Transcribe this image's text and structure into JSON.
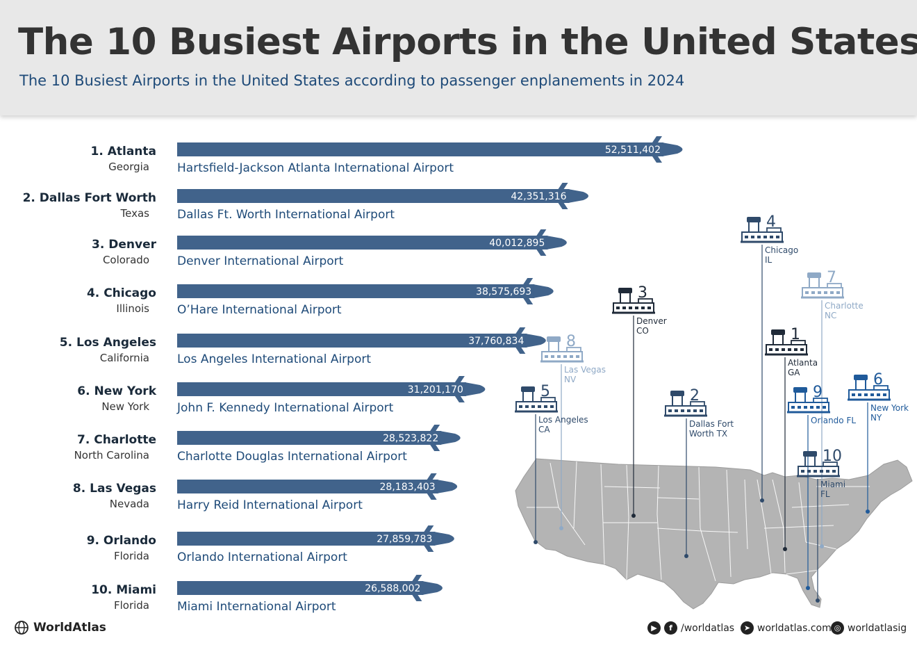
{
  "header": {
    "title": "The 10 Busiest Airports in the United States",
    "subtitle": "The 10 Busiest Airports in the United States according to passenger enplanements in 2024"
  },
  "chart_data": {
    "type": "bar",
    "orientation": "horizontal",
    "title": "The 10 Busiest Airports in the United States",
    "subtitle": "The 10 Busiest Airports in the United States according to passenger enplanements in 2024",
    "xlabel": "",
    "ylabel": "",
    "bar_color": "#41638b",
    "categories": [
      "Atlanta",
      "Dallas Fort Worth",
      "Denver",
      "Chicago",
      "Los Angeles",
      "New York",
      "Charlotte",
      "Las Vegas",
      "Orlando",
      "Miami"
    ],
    "items": [
      {
        "rank": "1.",
        "city": "Atlanta",
        "state": "Georgia",
        "airport": "Hartsfield-Jackson Atlanta International Airport",
        "value": 52511402,
        "label": "52,511,402"
      },
      {
        "rank": "2.",
        "city": "Dallas Fort Worth",
        "state": "Texas",
        "airport": "Dallas Ft. Worth International Airport",
        "value": 42351316,
        "label": "42,351,316"
      },
      {
        "rank": "3.",
        "city": "Denver",
        "state": "Colorado",
        "airport": "Denver International Airport",
        "value": 40012895,
        "label": "40,012,895"
      },
      {
        "rank": "4.",
        "city": "Chicago",
        "state": "Illinois",
        "airport": "O’Hare International Airport",
        "value": 38575693,
        "label": "38,575,693"
      },
      {
        "rank": "5.",
        "city": "Los Angeles",
        "state": "California",
        "airport": "Los Angeles International Airport",
        "value": 37760834,
        "label": "37,760,834"
      },
      {
        "rank": "6.",
        "city": "New York",
        "state": "New York",
        "airport": "John F. Kennedy International Airport",
        "value": 31201170,
        "label": "31,201,170"
      },
      {
        "rank": "7.",
        "city": "Charlotte",
        "state": "North Carolina",
        "airport": "Charlotte Douglas International Airport",
        "value": 28523822,
        "label": "28,523,822"
      },
      {
        "rank": "8.",
        "city": "Las Vegas",
        "state": "Nevada",
        "airport": "Harry Reid International Airport",
        "value": 28183403,
        "label": "28,183,403"
      },
      {
        "rank": "9.",
        "city": "Orlando",
        "state": "Florida",
        "airport": "Orlando International Airport",
        "value": 27859783,
        "label": "27,859,783"
      },
      {
        "rank": "10.",
        "city": "Miami",
        "state": "Florida",
        "airport": "Miami International Airport",
        "value": 26588002,
        "label": "26,588,002"
      }
    ]
  },
  "map": {
    "colors": {
      "land": "#b4b4b4",
      "border": "#ffffff",
      "marker": "#41638b",
      "marker_light": "#8fa9c6",
      "marker_dark": "#1f2a38"
    },
    "markers": [
      {
        "rank": "1",
        "line1": "Atlanta",
        "line2": "GA",
        "tone": "dark"
      },
      {
        "rank": "2",
        "line1": "Dallas Fort",
        "line2": "Worth TX",
        "tone": "mid"
      },
      {
        "rank": "3",
        "line1": "Denver",
        "line2": "CO",
        "tone": "dark"
      },
      {
        "rank": "4",
        "line1": "Chicago",
        "line2": "IL",
        "tone": "mid"
      },
      {
        "rank": "5",
        "line1": "Los Angeles",
        "line2": "CA",
        "tone": "mid"
      },
      {
        "rank": "6",
        "line1": "New York",
        "line2": "NY",
        "tone": "blue"
      },
      {
        "rank": "7",
        "line1": "Charlotte",
        "line2": "NC",
        "tone": "light"
      },
      {
        "rank": "8",
        "line1": "Las Vegas",
        "line2": "NV",
        "tone": "light"
      },
      {
        "rank": "9",
        "line1": "Orlando FL",
        "line2": "",
        "tone": "blue"
      },
      {
        "rank": "10",
        "line1": "Miami",
        "line2": "FL",
        "tone": "mid"
      }
    ]
  },
  "footer": {
    "brand": "WorldAtlas",
    "social_handle": "/worldatlas",
    "website": "worldatlas.com",
    "instagram": "worldatlasig",
    "icons": [
      "globe-icon",
      "youtube-icon",
      "facebook-icon",
      "cursor-icon",
      "instagram-icon"
    ]
  }
}
